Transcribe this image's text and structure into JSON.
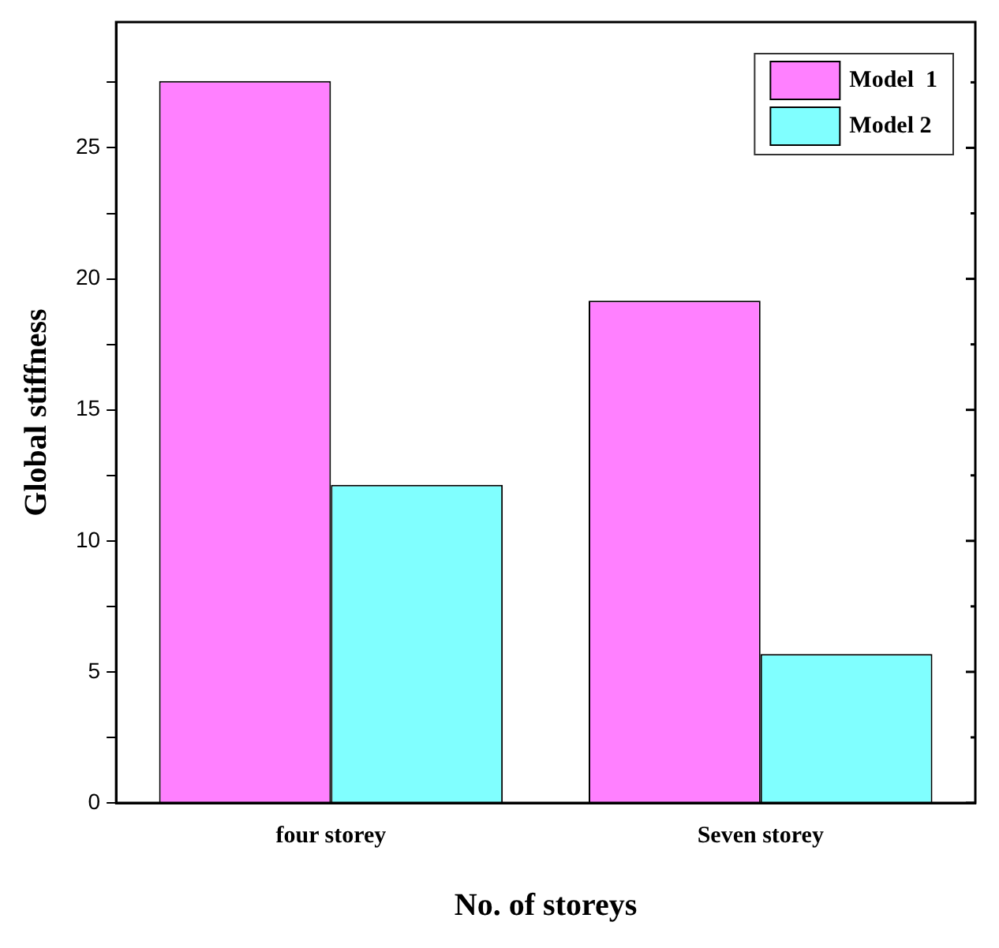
{
  "chart_data": {
    "type": "bar",
    "xlabel": "No. of storeys",
    "ylabel": "Global stiffness",
    "categories": [
      "four storey",
      "Seven storey"
    ],
    "series": [
      {
        "name": "Model  1",
        "color": "#ff80ff",
        "values": [
          27.55,
          19.17
        ]
      },
      {
        "name": "Model 2",
        "color": "#80ffff",
        "values": [
          12.14,
          5.68
        ]
      }
    ],
    "ylim": [
      0,
      29.8
    ],
    "yticks": [
      0,
      {
        "value": 2.5,
        "label": null
      },
      5,
      {
        "value": 7.5,
        "label": null
      },
      10,
      {
        "value": 12.5,
        "label": null
      },
      15,
      {
        "value": 17.5,
        "label": null
      },
      20,
      {
        "value": 22.5,
        "label": null
      },
      25,
      {
        "value": 27.5,
        "label": null
      }
    ],
    "legend": "top right",
    "grid": false
  }
}
